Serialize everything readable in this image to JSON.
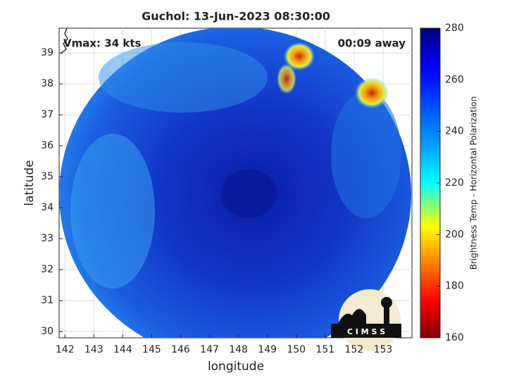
{
  "chart_data": {
    "type": "image",
    "title": "Guchol: 13-Jun-2023 08:30:00",
    "annotations": [
      "Vmax: 34 kts",
      "00:09 away"
    ],
    "x_label": "longitude",
    "y_label": "latitude",
    "xlim": [
      141.8,
      154.0
    ],
    "xticks": [
      142,
      143,
      144,
      145,
      146,
      147,
      148,
      149,
      150,
      151,
      152,
      153
    ],
    "ylim": [
      29.8,
      39.8
    ],
    "yticks": [
      30,
      31,
      32,
      33,
      34,
      35,
      36,
      37,
      38,
      39
    ],
    "grid": true,
    "colorbar": {
      "label": "Brightness Temp - Horizontal Polarization",
      "lim": [
        160,
        280
      ],
      "ticks": [
        160,
        180,
        200,
        220,
        240,
        260,
        280
      ],
      "colormap": "jet"
    },
    "logo": "C I M S S"
  }
}
